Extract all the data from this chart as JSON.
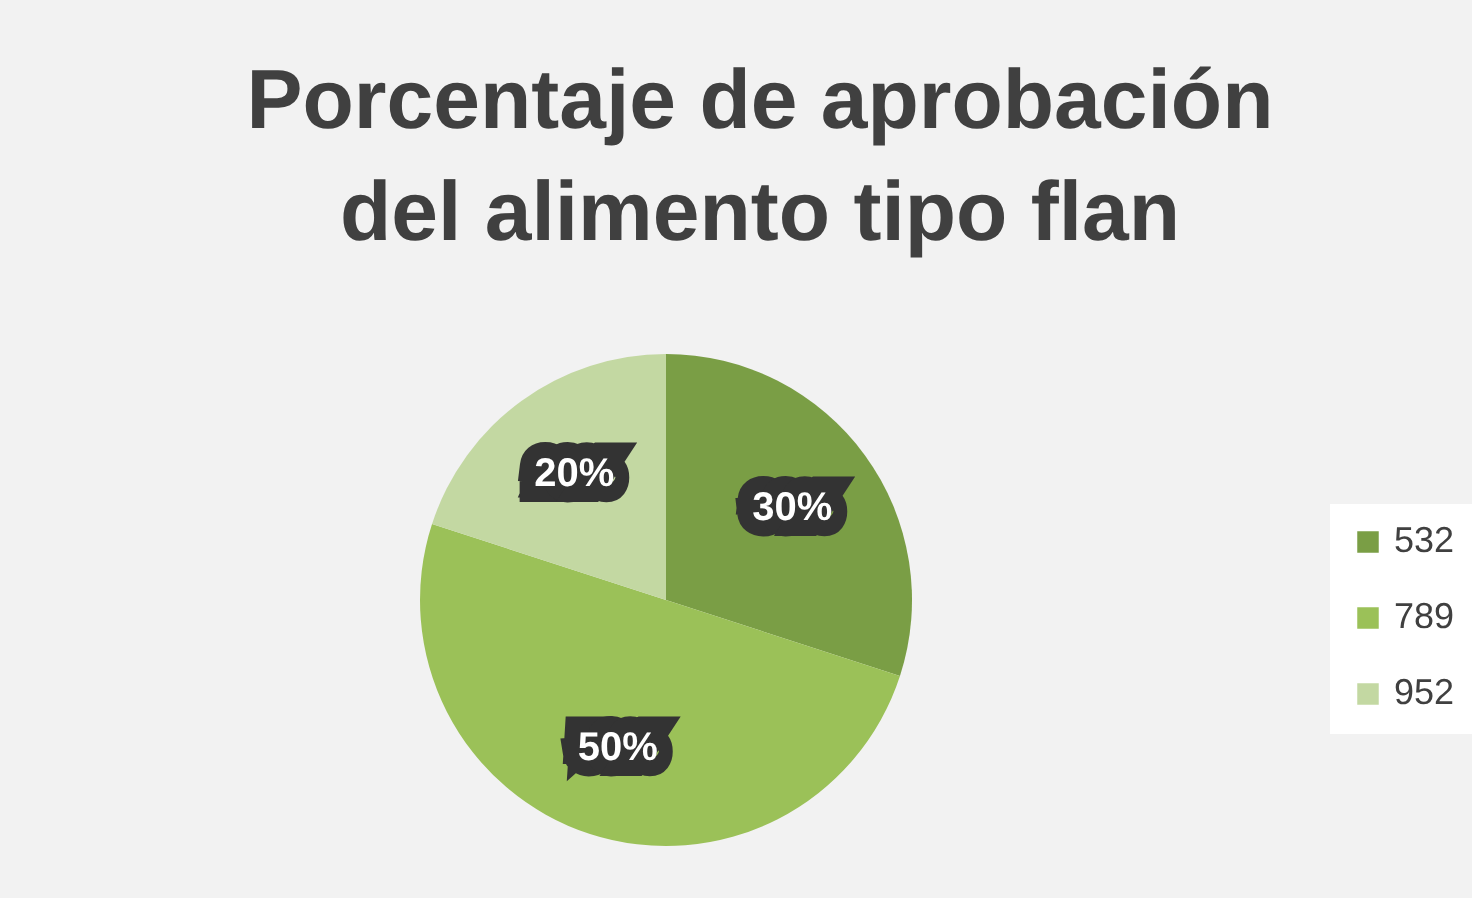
{
  "chart_data": {
    "type": "pie",
    "title": "Porcentaje de aprobación del alimento tipo flan",
    "categories": [
      "532",
      "789",
      "952"
    ],
    "values": [
      30,
      50,
      20
    ],
    "colors": [
      "#7a9e45",
      "#9bc158",
      "#c3d8a2"
    ],
    "value_labels": [
      "30%",
      "50%",
      "20%"
    ],
    "legend": "right"
  }
}
